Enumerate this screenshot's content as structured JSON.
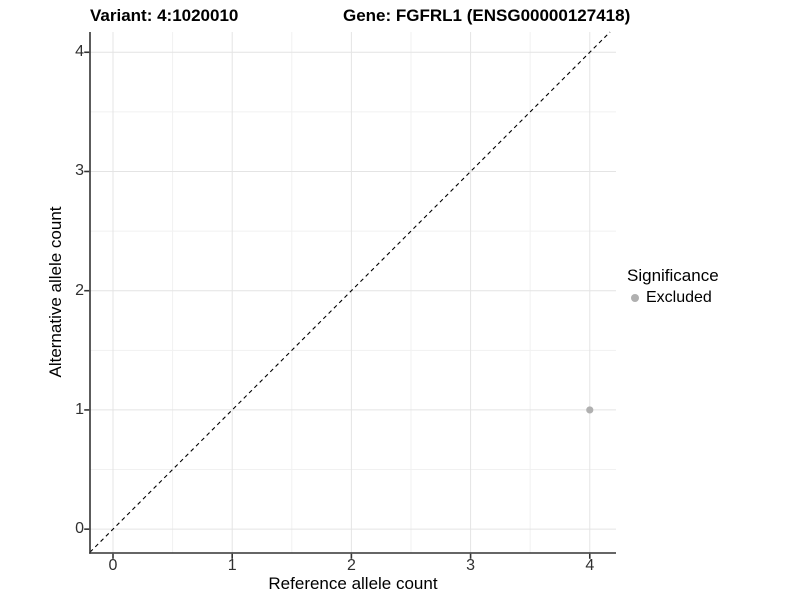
{
  "chart_data": {
    "type": "scatter",
    "title_variant": "Variant: 4:1020010",
    "title_gene": "Gene: FGFRL1 (ENSG00000127418)",
    "xlabel": "Reference allele count",
    "ylabel": "Alternative allele count",
    "xlim": [
      -0.193,
      4.22
    ],
    "ylim": [
      -0.2,
      4.17
    ],
    "x_ticks": [
      0,
      1,
      2,
      3,
      4
    ],
    "y_ticks": [
      0,
      1,
      2,
      3,
      4
    ],
    "x_minor_ticks": [
      0.5,
      1.5,
      2.5,
      3.5
    ],
    "y_minor_ticks": [
      0.5,
      1.5,
      2.5,
      3.5
    ],
    "grid": true,
    "points": [
      {
        "x": 4,
        "y": 1,
        "significance": "Excluded"
      }
    ],
    "reference_line": {
      "equation": "y = x",
      "style": "dashed",
      "color": "#000000"
    },
    "legend": {
      "title": "Significance",
      "position": "right",
      "items": [
        {
          "label": "Excluded",
          "color": "#b0b0b0"
        }
      ]
    },
    "colors": {
      "point": "#b0b0b0",
      "grid_major": "#e4e4e4",
      "grid_minor": "#f1f1f1",
      "axis": "#333333",
      "tick_label": "#303030",
      "background": "#ffffff"
    }
  }
}
